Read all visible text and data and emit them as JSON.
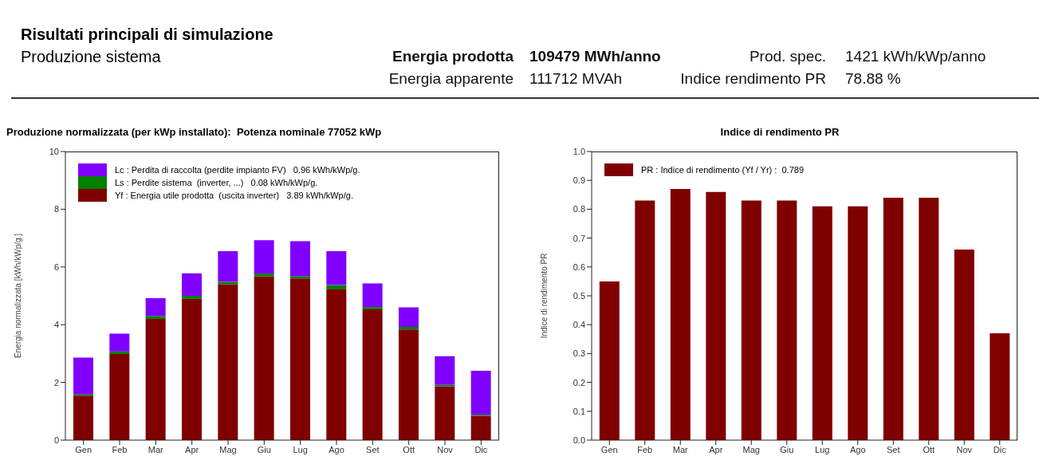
{
  "chart_data": [
    {
      "type": "other",
      "title": "Risultati principali di simulazione",
      "subtitle": "Produzione sistema",
      "annotations": [
        "Energia prodotta",
        "109479 MWh/anno",
        "Prod. spec.",
        "1421 kWh/kWp/anno",
        "Energia apparente",
        "111712 MVAh",
        "Indice rendimento PR",
        "78.88 %"
      ]
    },
    {
      "type": "bar",
      "title": "Produzione normalizzata (per kWp installato):  Potenza nominale 77052 kWp",
      "ylabel": "Energia  normalizzata  [kWh/kWp/g.]",
      "categories": [
        "Gen",
        "Feb",
        "Mar",
        "Apr",
        "Mag",
        "Giu",
        "Lug",
        "Ago",
        "Set",
        "Ott",
        "Nov",
        "Dic"
      ],
      "stacked": true,
      "series": [
        {
          "name": "Yf : Energia utile prodotta  (uscita inverter)   3.89 kWh/kWp/g.",
          "color": "#800000",
          "values": [
            1.54,
            2.98,
            4.2,
            4.9,
            5.4,
            5.67,
            5.6,
            5.22,
            4.53,
            3.83,
            1.86,
            0.84
          ]
        },
        {
          "name": "Ls : Perdite sistema  (inverter, ...)   0.08 kWh/kWp/g.",
          "color": "#008000",
          "values": [
            0.05,
            0.09,
            0.1,
            0.1,
            0.08,
            0.1,
            0.08,
            0.15,
            0.08,
            0.09,
            0.05,
            0.04
          ]
        },
        {
          "name": "Lc : Perdita di raccolta (perdite impianto FV)   0.96 kWh/kWp/g.",
          "color": "#8000ff",
          "values": [
            1.27,
            0.62,
            0.62,
            0.78,
            1.07,
            1.16,
            1.21,
            1.18,
            0.82,
            0.68,
            1.0,
            1.52
          ]
        }
      ],
      "ylim": [
        0,
        10
      ],
      "yticks": [
        0,
        2,
        4,
        6,
        8,
        10
      ],
      "grid": false,
      "legend": "top left"
    },
    {
      "type": "bar",
      "title": "Indice di rendimento PR",
      "ylabel": "Indice  di  rendimento  PR",
      "categories": [
        "Gen",
        "Feb",
        "Mar",
        "Apr",
        "Mag",
        "Giu",
        "Lug",
        "Ago",
        "Set",
        "Ott",
        "Nov",
        "Dic"
      ],
      "series": [
        {
          "name": "PR : Indice di rendimento (Yf / Yr) :  0.789",
          "color": "#800000",
          "values": [
            0.55,
            0.83,
            0.87,
            0.86,
            0.83,
            0.83,
            0.81,
            0.81,
            0.84,
            0.84,
            0.66,
            0.37
          ]
        }
      ],
      "ylim": [
        0,
        1
      ],
      "yticks": [
        {
          "value": 0,
          "label": "0.0"
        },
        {
          "value": 0.1,
          "label": "0.1"
        },
        {
          "value": 0.2,
          "label": "0.2"
        },
        {
          "value": 0.3,
          "label": "0.3"
        },
        {
          "value": 0.4,
          "label": "0.4"
        },
        {
          "value": 0.5,
          "label": "0.5"
        },
        {
          "value": 0.6,
          "label": "0.6"
        },
        {
          "value": 0.7,
          "label": "0.7"
        },
        {
          "value": 0.8,
          "label": "0.8"
        },
        {
          "value": 0.9,
          "label": "0.9"
        },
        {
          "value": 1,
          "label": "1.0"
        }
      ],
      "grid": false,
      "legend": "top left"
    }
  ]
}
